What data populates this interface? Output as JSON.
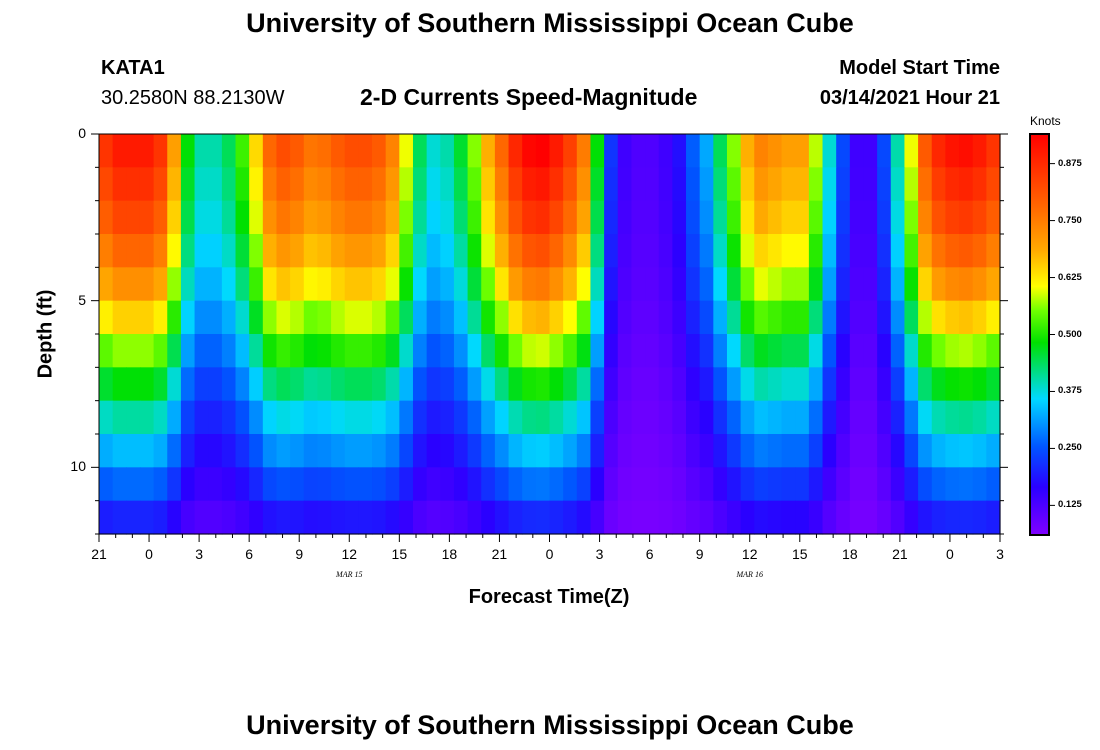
{
  "title": "University of Southern Mississippi Ocean Cube",
  "footer_title": "University of Southern Mississippi Ocean Cube",
  "station": {
    "id": "KATA1",
    "coords": "30.2580N 88.2130W"
  },
  "subtitle": "2-D Currents Speed-Magnitude",
  "model_start": {
    "label": "Model Start Time",
    "value": "03/14/2021 Hour 21"
  },
  "colorbar": {
    "unit_label": "Knots",
    "min": 0.06,
    "max": 0.94,
    "ticks": [
      "0.875",
      "0.750",
      "0.625",
      "0.500",
      "0.375",
      "0.250",
      "0.125"
    ],
    "tick_values": [
      0.875,
      0.75,
      0.625,
      0.5,
      0.375,
      0.25,
      0.125
    ]
  },
  "chart_data": {
    "type": "heatmap",
    "title": "2-D Currents Speed-Magnitude",
    "xlabel": "Forecast Time(Z)",
    "ylabel": "Depth (ft)",
    "x_hours_range": [
      0,
      54
    ],
    "x_ticks": [
      {
        "hour": 0,
        "label": "21"
      },
      {
        "hour": 3,
        "label": "0"
      },
      {
        "hour": 6,
        "label": "3"
      },
      {
        "hour": 9,
        "label": "6"
      },
      {
        "hour": 12,
        "label": "9"
      },
      {
        "hour": 15,
        "label": "12"
      },
      {
        "hour": 18,
        "label": "15"
      },
      {
        "hour": 21,
        "label": "18"
      },
      {
        "hour": 24,
        "label": "21"
      },
      {
        "hour": 27,
        "label": "0"
      },
      {
        "hour": 30,
        "label": "3"
      },
      {
        "hour": 33,
        "label": "6"
      },
      {
        "hour": 36,
        "label": "9"
      },
      {
        "hour": 39,
        "label": "12"
      },
      {
        "hour": 42,
        "label": "15"
      },
      {
        "hour": 45,
        "label": "18"
      },
      {
        "hour": 48,
        "label": "21"
      },
      {
        "hour": 51,
        "label": "0"
      },
      {
        "hour": 54,
        "label": "3"
      }
    ],
    "date_labels": [
      {
        "hour": 15,
        "label": "MAR 15"
      },
      {
        "hour": 39,
        "label": "MAR 16"
      }
    ],
    "y_range": [
      0,
      12
    ],
    "y_ticks": [
      {
        "depth": 0,
        "label": "0"
      },
      {
        "depth": 5,
        "label": "5"
      },
      {
        "depth": 10,
        "label": "10"
      }
    ],
    "depth_layers": 12,
    "surface_speed_knots": [
      0.86,
      0.9,
      0.9,
      0.9,
      0.86,
      0.7,
      0.48,
      0.4,
      0.4,
      0.44,
      0.52,
      0.64,
      0.78,
      0.82,
      0.8,
      0.76,
      0.77,
      0.8,
      0.82,
      0.82,
      0.8,
      0.74,
      0.6,
      0.44,
      0.38,
      0.4,
      0.46,
      0.56,
      0.68,
      0.78,
      0.88,
      0.93,
      0.94,
      0.9,
      0.84,
      0.75,
      0.48,
      0.22,
      0.14,
      0.12,
      0.12,
      0.14,
      0.18,
      0.26,
      0.32,
      0.44,
      0.56,
      0.68,
      0.74,
      0.72,
      0.7,
      0.7,
      0.58,
      0.38,
      0.24,
      0.14,
      0.14,
      0.24,
      0.4,
      0.6,
      0.8,
      0.88,
      0.91,
      0.92,
      0.9,
      0.86
    ],
    "depth_decay": [
      1.0,
      0.96,
      0.92,
      0.86,
      0.79,
      0.7,
      0.6,
      0.5,
      0.41,
      0.33,
      0.25,
      0.17
    ]
  }
}
